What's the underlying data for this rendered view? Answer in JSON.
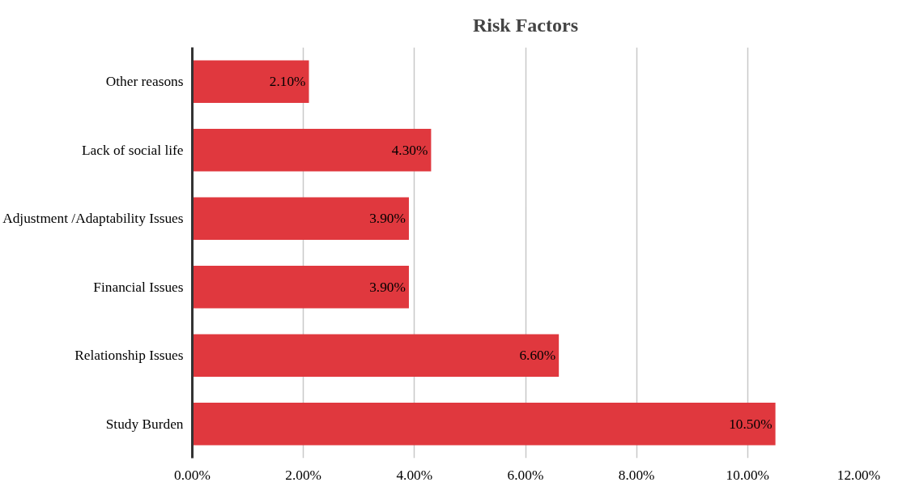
{
  "chart_data": {
    "type": "bar",
    "orientation": "horizontal",
    "title": "Risk Factors",
    "categories": [
      "Other reasons",
      "Lack of social life",
      "Adjustment /Adaptability Issues",
      "Financial Issues",
      "Relationship Issues",
      "Study Burden"
    ],
    "values": [
      2.1,
      4.3,
      3.9,
      3.9,
      6.6,
      10.5
    ],
    "value_labels": [
      "2.10%",
      "4.30%",
      "3.90%",
      "3.90%",
      "6.60%",
      "10.50%"
    ],
    "color": "#e0383e",
    "xlim": [
      0,
      12
    ],
    "xticks": [
      {
        "value": 0,
        "label": "0.00%"
      },
      {
        "value": 2,
        "label": "2.00%"
      },
      {
        "value": 4,
        "label": "4.00%"
      },
      {
        "value": 6,
        "label": "6.00%"
      },
      {
        "value": 8,
        "label": "8.00%"
      },
      {
        "value": 10,
        "label": "10.00%"
      },
      {
        "value": 12,
        "label": "12.00%"
      }
    ],
    "grid": "x"
  }
}
